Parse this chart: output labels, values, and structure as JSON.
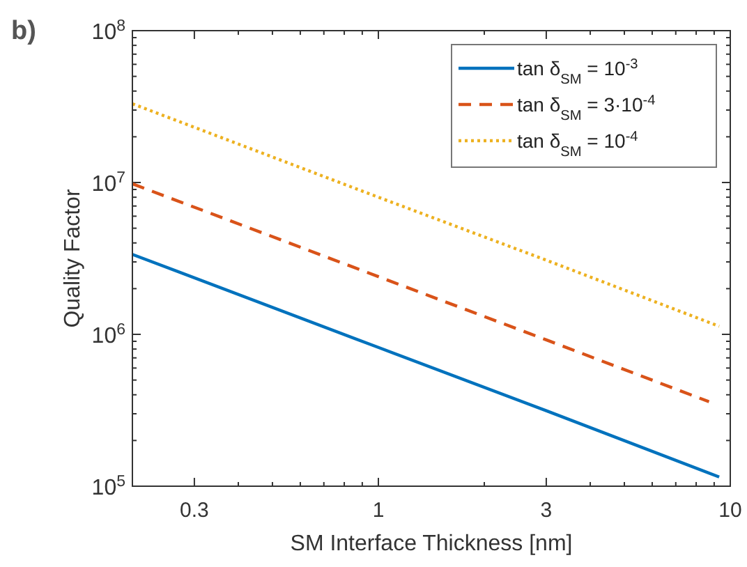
{
  "chart_data": {
    "type": "line",
    "xlabel": "SM Interface Thickness [nm]",
    "ylabel": "Quality Factor",
    "annotations": [
      "b)"
    ],
    "log": "xy",
    "grid": false,
    "legend": "top right",
    "xlim": [
      0.2,
      10
    ],
    "ylim": [
      100000,
      100000000
    ],
    "xticks": [
      {
        "value": 0.2,
        "label": null
      },
      {
        "value": 0.3,
        "label": "0.3"
      },
      {
        "value": 0.4,
        "label": null
      },
      {
        "value": 0.5,
        "label": null
      },
      {
        "value": 0.6,
        "label": null
      },
      {
        "value": 0.7,
        "label": null
      },
      {
        "value": 0.8,
        "label": null
      },
      {
        "value": 0.9,
        "label": null
      },
      {
        "value": 1,
        "label": "1"
      },
      {
        "value": 2,
        "label": null
      },
      {
        "value": 3,
        "label": "3"
      },
      {
        "value": 4,
        "label": null
      },
      {
        "value": 5,
        "label": null
      },
      {
        "value": 6,
        "label": null
      },
      {
        "value": 7,
        "label": null
      },
      {
        "value": 8,
        "label": null
      },
      {
        "value": 9,
        "label": null
      },
      {
        "value": 10,
        "label": "10"
      }
    ],
    "yticks": [
      {
        "value": 100000,
        "label": "10$^{5}$"
      },
      {
        "value": 200000,
        "label": null
      },
      {
        "value": 300000,
        "label": null
      },
      {
        "value": 400000,
        "label": null
      },
      {
        "value": 500000,
        "label": null
      },
      {
        "value": 600000,
        "label": null
      },
      {
        "value": 700000,
        "label": null
      },
      {
        "value": 800000,
        "label": null
      },
      {
        "value": 900000,
        "label": null
      },
      {
        "value": 1000000,
        "label": "10$^{6}$"
      },
      {
        "value": 2000000,
        "label": null
      },
      {
        "value": 3000000,
        "label": null
      },
      {
        "value": 4000000,
        "label": null
      },
      {
        "value": 5000000,
        "label": null
      },
      {
        "value": 6000000,
        "label": null
      },
      {
        "value": 7000000,
        "label": null
      },
      {
        "value": 8000000,
        "label": null
      },
      {
        "value": 9000000,
        "label": null
      },
      {
        "value": 10000000,
        "label": "10$^{7}$"
      },
      {
        "value": 20000000,
        "label": null
      },
      {
        "value": 30000000,
        "label": null
      },
      {
        "value": 40000000,
        "label": null
      },
      {
        "value": 50000000,
        "label": null
      },
      {
        "value": 60000000,
        "label": null
      },
      {
        "value": 70000000,
        "label": null
      },
      {
        "value": 80000000,
        "label": null
      },
      {
        "value": 90000000,
        "label": null
      },
      {
        "value": 100000000,
        "label": "10$^{8}$"
      }
    ],
    "series": [
      {
        "name": "tan δ$_{SM}$ = 10$^{-3}$",
        "color": "#0072bd",
        "line_style": "solid",
        "x": [
          0.2,
          1,
          3,
          9.3
        ],
        "values": [
          3360000,
          820000,
          314000,
          115000
        ]
      },
      {
        "name": "tan δ$_{SM}$ = 3·10$^{-4}$",
        "color": "#d95319",
        "line_style": "dashed",
        "x": [
          0.2,
          1,
          3,
          8.7
        ],
        "values": [
          9800000,
          2400000,
          920000,
          360000
        ]
      },
      {
        "name": "tan δ$_{SM}$ = 10$^{-4}$",
        "color": "#edb120",
        "line_style": "dotted",
        "x": [
          0.2,
          1,
          3,
          9.3
        ],
        "values": [
          33000000,
          8000000,
          3080000,
          1130000
        ]
      }
    ]
  }
}
